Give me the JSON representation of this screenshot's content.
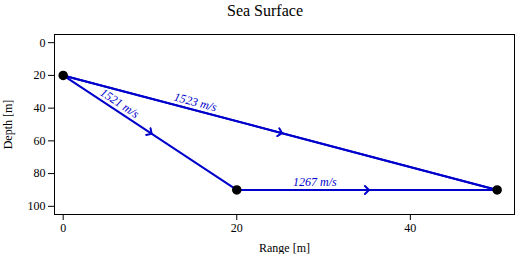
{
  "chart_data": {
    "type": "line",
    "title": "Sea Surface",
    "xlabel": "Range [m]",
    "ylabel": "Depth [m]",
    "xlim": [
      -1,
      52
    ],
    "ylim": [
      105,
      -5
    ],
    "xticks": [
      0,
      20,
      40
    ],
    "yticks": [
      0,
      20,
      40,
      60,
      80,
      100
    ],
    "color": "#0000cc",
    "segments": [
      {
        "x": [
          0,
          20
        ],
        "y": [
          20,
          90
        ],
        "label": "1521 m/s",
        "marker": "arrow"
      },
      {
        "x": [
          0,
          50
        ],
        "y": [
          20,
          90
        ],
        "label": "1523 m/s",
        "marker": "arrow"
      },
      {
        "x": [
          20,
          50
        ],
        "y": [
          90,
          90
        ],
        "label": "1267 m/s",
        "marker": "arrow"
      },
      {
        "x": [
          50,
          0
        ],
        "y": [
          90,
          20
        ]
      }
    ],
    "points": {
      "x": [
        0,
        20,
        50
      ],
      "y": [
        20,
        90,
        90
      ],
      "color": "black"
    }
  }
}
